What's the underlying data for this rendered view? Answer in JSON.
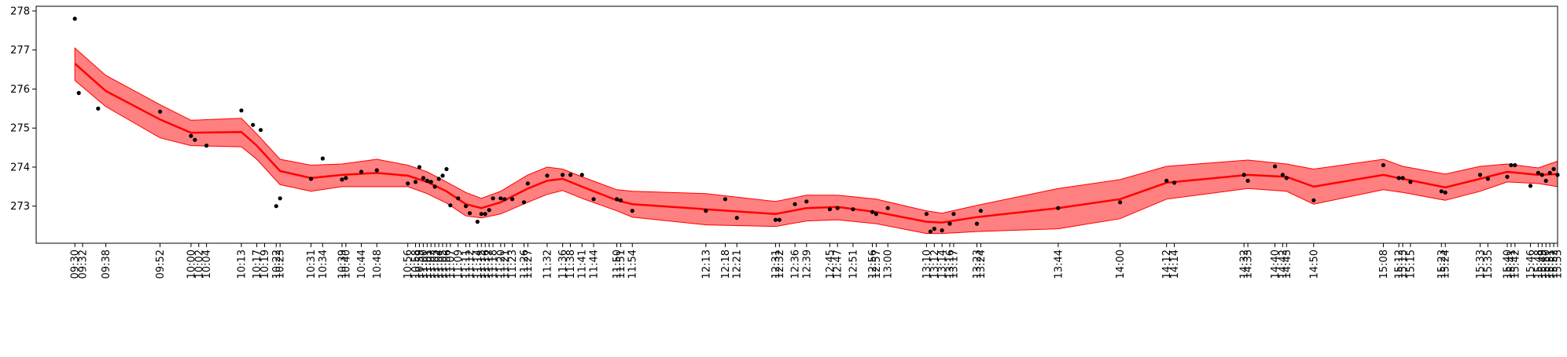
{
  "chart_data": {
    "type": "scatter",
    "title": "",
    "xlabel": "",
    "ylabel": "",
    "x_unit": "time of day (HH:MM)",
    "xlim": [
      "09:20",
      "15:53"
    ],
    "ylim": [
      272.05,
      278.12
    ],
    "y_ticks": [
      273,
      274,
      275,
      276,
      277,
      278
    ],
    "x_tick_labels": [
      "09:30",
      "09:32",
      "09:38",
      "09:52",
      "10:00",
      "10:02",
      "10:04",
      "10:13",
      "10:17",
      "10:19",
      "10:22",
      "10:23",
      "10:31",
      "10:34",
      "10:39",
      "10:40",
      "10:44",
      "10:48",
      "10:56",
      "10:58",
      "10:59",
      "11:00",
      "11:01",
      "11:02",
      "11:03",
      "11:04",
      "11:05",
      "11:06",
      "11:07",
      "11:09",
      "11:11",
      "11:12",
      "11:14",
      "11:15",
      "11:16",
      "11:17",
      "11:18",
      "11:20",
      "11:21",
      "11:23",
      "11:26",
      "11:27",
      "11:32",
      "11:36",
      "11:38",
      "11:41",
      "11:44",
      "11:50",
      "11:51",
      "11:54",
      "12:13",
      "12:18",
      "12:21",
      "12:31",
      "12:32",
      "12:36",
      "12:39",
      "12:45",
      "12:47",
      "12:51",
      "12:56",
      "12:57",
      "13:00",
      "13:10",
      "13:12",
      "13:14",
      "13:16",
      "13:17",
      "13:23",
      "13:24",
      "13:44",
      "14:00",
      "14:12",
      "14:14",
      "14:32",
      "14:33",
      "14:40",
      "14:42",
      "14:43",
      "14:50",
      "15:08",
      "15:12",
      "15:13",
      "15:15",
      "15:23",
      "15:24",
      "15:33",
      "15:35",
      "15:40",
      "15:41",
      "15:42",
      "15:46",
      "15:48",
      "15:49",
      "15:50",
      "15:51",
      "15:52",
      "15:53"
    ],
    "fit_line": {
      "color": "#ff0000",
      "x": [
        "09:30",
        "09:38",
        "09:52",
        "10:00",
        "10:13",
        "10:17",
        "10:23",
        "10:31",
        "10:39",
        "10:48",
        "10:56",
        "11:01",
        "11:06",
        "11:11",
        "11:15",
        "11:20",
        "11:27",
        "11:32",
        "11:36",
        "11:41",
        "11:50",
        "11:54",
        "12:13",
        "12:31",
        "12:39",
        "12:47",
        "12:57",
        "13:10",
        "13:14",
        "13:23",
        "13:44",
        "14:00",
        "14:12",
        "14:33",
        "14:43",
        "14:50",
        "15:08",
        "15:13",
        "15:24",
        "15:33",
        "15:40",
        "15:48",
        "15:53"
      ],
      "y": [
        276.65,
        275.95,
        275.22,
        274.88,
        274.9,
        274.55,
        273.9,
        273.72,
        273.8,
        273.85,
        273.78,
        273.62,
        273.38,
        273.05,
        272.95,
        273.1,
        273.45,
        273.65,
        273.7,
        273.5,
        273.15,
        273.05,
        272.92,
        272.8,
        272.95,
        272.98,
        272.85,
        272.6,
        272.58,
        272.72,
        272.95,
        273.18,
        273.6,
        273.8,
        273.75,
        273.5,
        273.8,
        273.7,
        273.48,
        273.7,
        273.88,
        273.8,
        273.82
      ]
    },
    "confidence_band": {
      "color": "#ff8080",
      "upper": [
        277.05,
        276.35,
        275.6,
        275.2,
        275.25,
        274.85,
        274.2,
        274.05,
        274.08,
        274.2,
        274.05,
        273.88,
        273.62,
        273.35,
        273.2,
        273.38,
        273.8,
        274.0,
        273.95,
        273.75,
        273.42,
        273.38,
        273.32,
        273.12,
        273.28,
        273.28,
        273.18,
        272.88,
        272.82,
        273.02,
        273.45,
        273.68,
        274.02,
        274.18,
        274.08,
        273.95,
        274.2,
        274.02,
        273.82,
        274.02,
        274.08,
        273.98,
        274.15
      ],
      "lower": [
        276.22,
        275.55,
        274.75,
        274.55,
        274.52,
        274.2,
        273.55,
        273.38,
        273.5,
        273.5,
        273.5,
        273.32,
        273.08,
        272.75,
        272.7,
        272.8,
        273.1,
        273.3,
        273.4,
        273.2,
        272.88,
        272.72,
        272.52,
        272.48,
        272.62,
        272.65,
        272.55,
        272.3,
        272.3,
        272.35,
        272.42,
        272.68,
        273.18,
        273.45,
        273.38,
        273.05,
        273.42,
        273.35,
        273.15,
        273.38,
        273.62,
        273.58,
        273.5
      ]
    },
    "points": {
      "color": "#000000",
      "x": [
        "09:30",
        "09:31",
        "09:36",
        "09:52",
        "10:00",
        "10:01",
        "10:04",
        "10:13",
        "10:16",
        "10:18",
        "10:22",
        "10:23",
        "10:31",
        "10:34",
        "10:39",
        "10:40",
        "10:44",
        "10:48",
        "10:56",
        "10:58",
        "10:59",
        "11:00",
        "11:01",
        "11:02",
        "11:03",
        "11:04",
        "11:05",
        "11:06",
        "11:07",
        "11:09",
        "11:11",
        "11:12",
        "11:14",
        "11:15",
        "11:16",
        "11:17",
        "11:18",
        "11:20",
        "11:21",
        "11:23",
        "11:26",
        "11:27",
        "11:32",
        "11:36",
        "11:38",
        "11:41",
        "11:44",
        "11:50",
        "11:51",
        "11:54",
        "12:13",
        "12:18",
        "12:21",
        "12:31",
        "12:32",
        "12:36",
        "12:39",
        "12:45",
        "12:47",
        "12:51",
        "12:56",
        "12:57",
        "13:00",
        "13:10",
        "13:11",
        "13:12",
        "13:14",
        "13:16",
        "13:17",
        "13:23",
        "13:24",
        "13:44",
        "14:00",
        "14:12",
        "14:14",
        "14:32",
        "14:33",
        "14:40",
        "14:42",
        "14:43",
        "14:50",
        "15:08",
        "15:12",
        "15:13",
        "15:15",
        "15:23",
        "15:24",
        "15:33",
        "15:35",
        "15:40",
        "15:41",
        "15:42",
        "15:46",
        "15:48",
        "15:49",
        "15:50",
        "15:51",
        "15:52",
        "15:53"
      ],
      "y": [
        277.8,
        275.9,
        275.5,
        275.42,
        274.8,
        274.7,
        274.55,
        275.45,
        275.08,
        274.95,
        273.0,
        273.2,
        273.7,
        274.22,
        273.68,
        273.72,
        273.88,
        273.92,
        273.58,
        273.62,
        274.0,
        273.72,
        273.65,
        273.62,
        273.5,
        273.7,
        273.78,
        273.95,
        273.02,
        273.2,
        273.0,
        272.82,
        272.6,
        272.8,
        272.8,
        272.9,
        273.2,
        273.2,
        273.18,
        273.18,
        273.1,
        273.58,
        273.78,
        273.8,
        273.8,
        273.8,
        273.18,
        273.18,
        273.15,
        272.88,
        272.88,
        273.18,
        272.7,
        272.65,
        272.65,
        273.05,
        273.12,
        272.92,
        272.95,
        272.92,
        272.85,
        272.8,
        272.95,
        272.8,
        272.35,
        272.42,
        272.38,
        272.55,
        272.8,
        272.55,
        272.88,
        272.95,
        273.1,
        273.65,
        273.6,
        273.8,
        273.65,
        274.02,
        273.8,
        273.72,
        273.15,
        274.05,
        273.72,
        273.72,
        273.62,
        273.38,
        273.35,
        273.8,
        273.7,
        273.75,
        274.05,
        274.05,
        273.52,
        273.85,
        273.8,
        273.65,
        273.85,
        273.95,
        273.8
      ]
    }
  }
}
